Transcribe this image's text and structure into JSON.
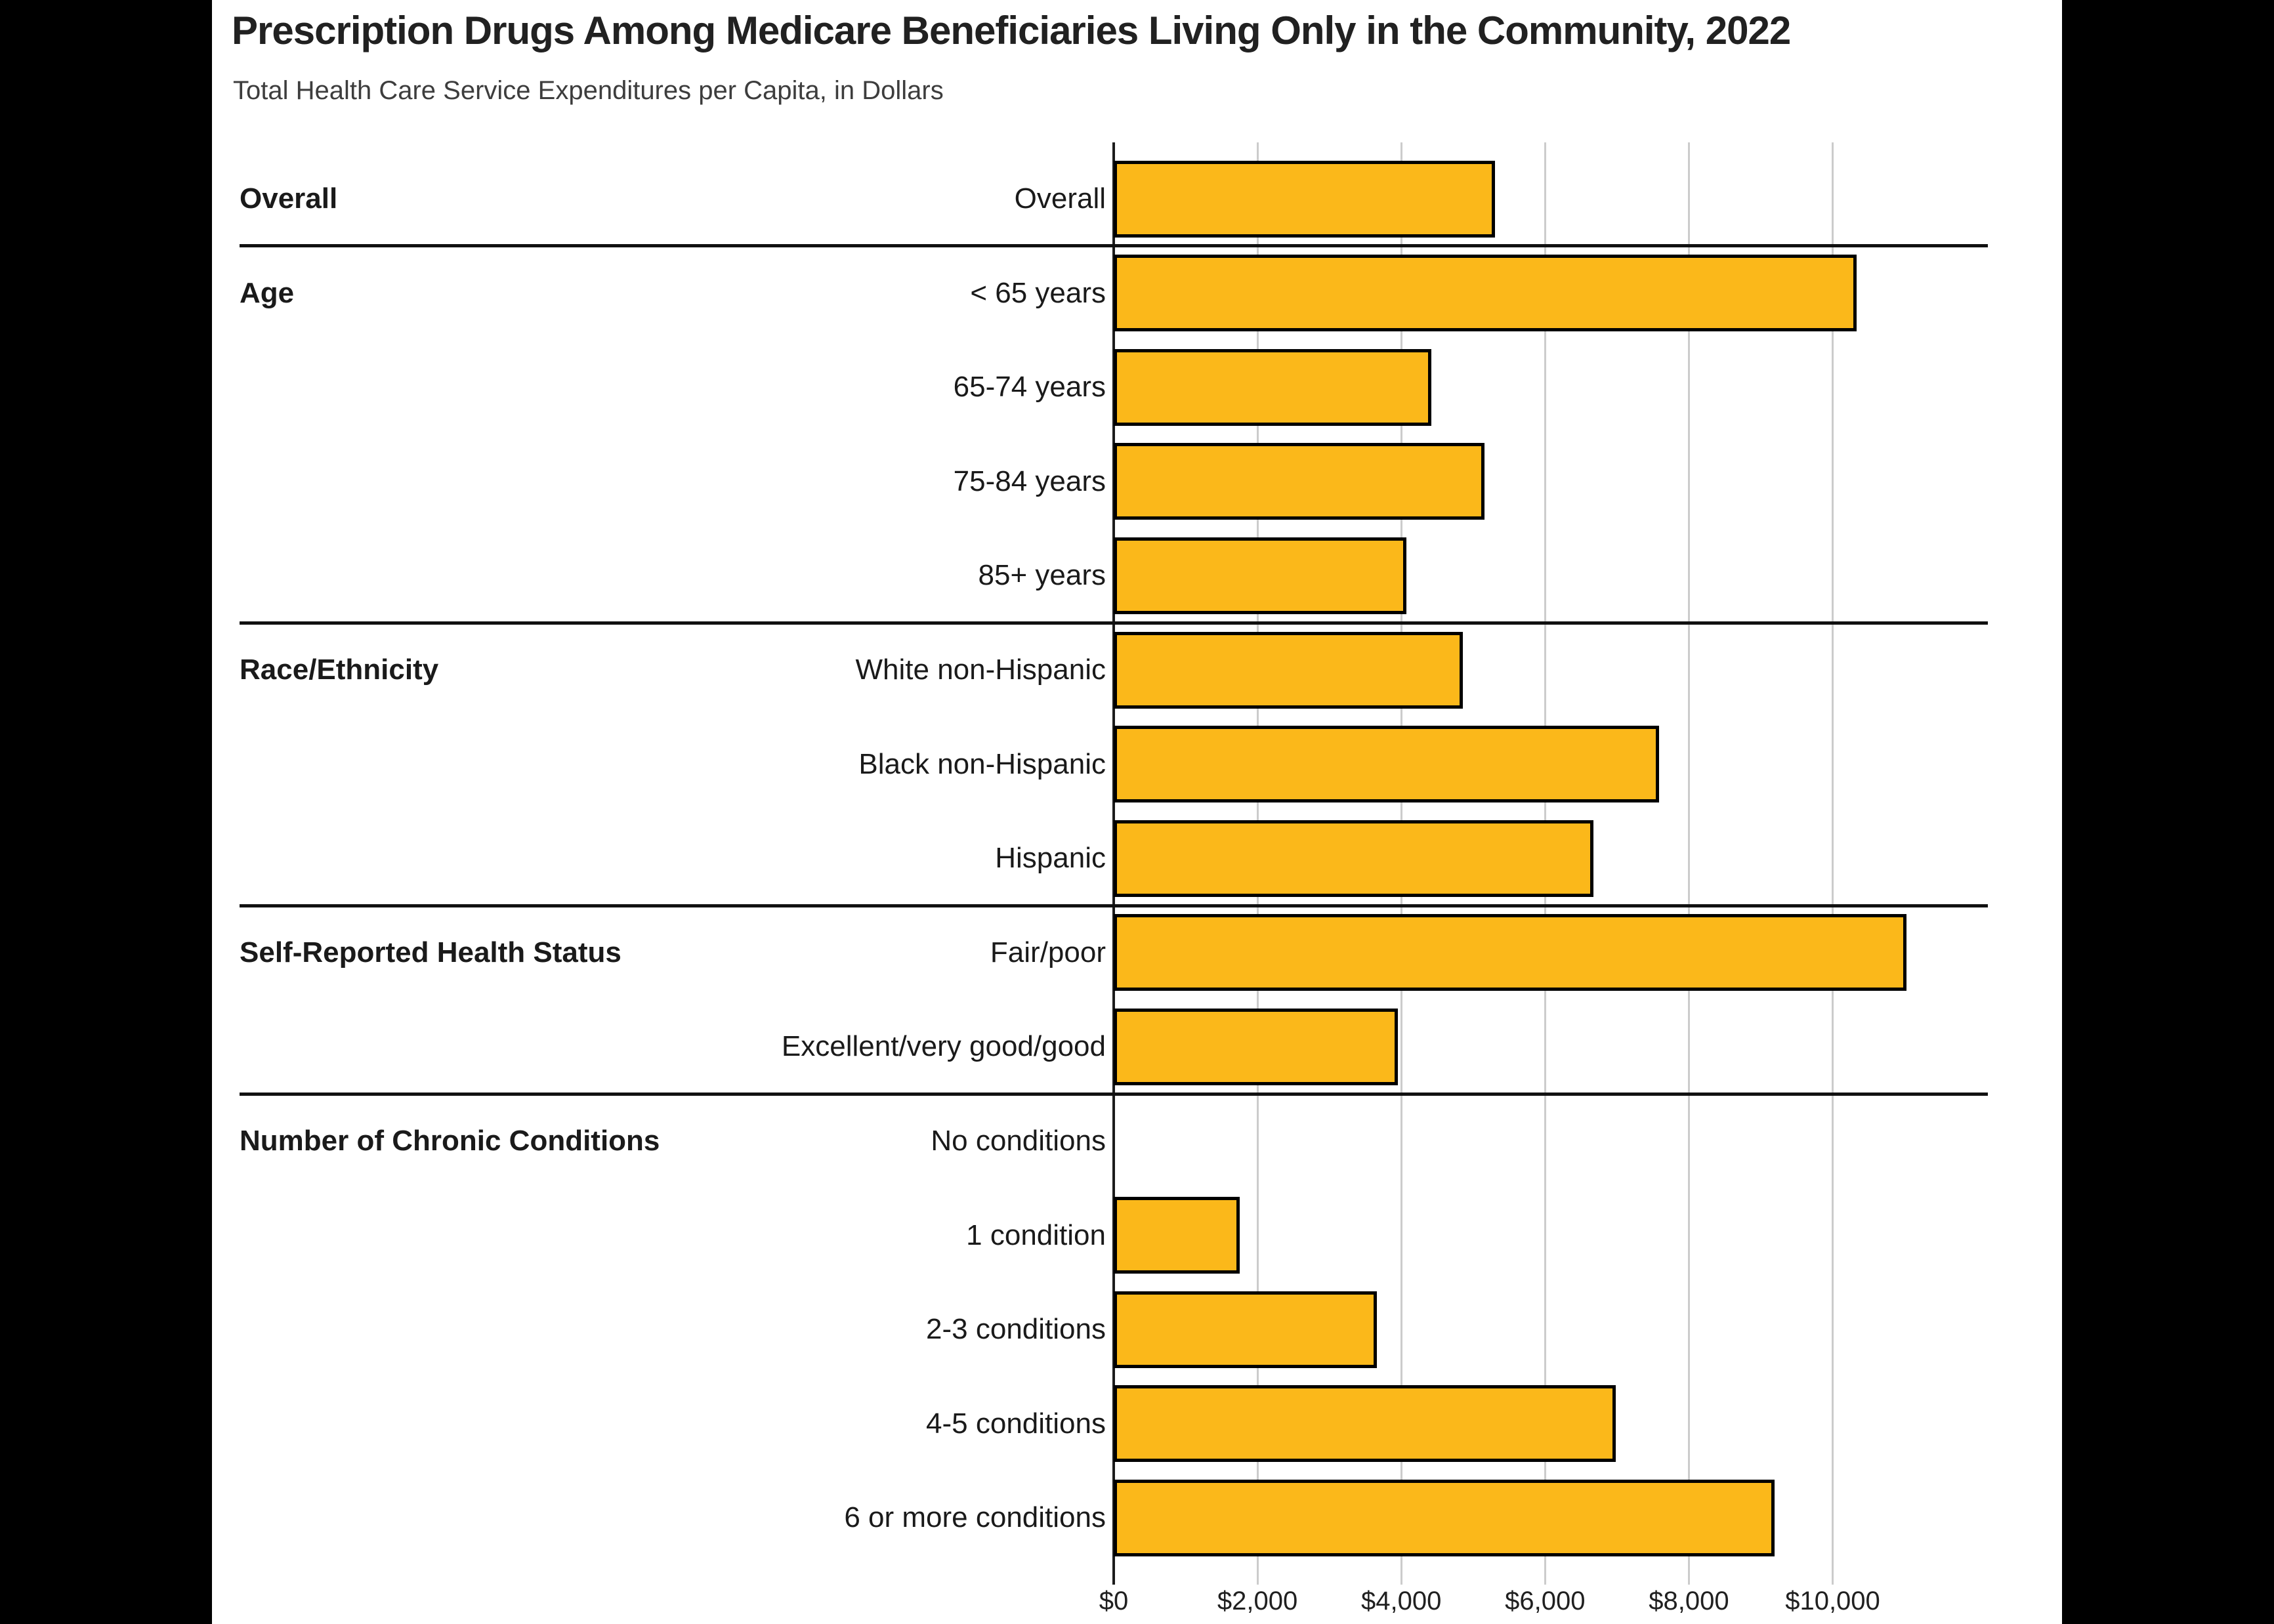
{
  "title": "Prescription Drugs Among Medicare Beneficiaries Living Only in the Community, 2022",
  "subtitle": "Total Health Care Service Expenditures per Capita, in Dollars",
  "chart_data": {
    "type": "bar",
    "orientation": "horizontal",
    "title": "Prescription Drugs Among Medicare Beneficiaries Living Only in the Community, 2022",
    "subtitle": "Total Health Care Service Expenditures per Capita, in Dollars",
    "xlabel": "Total Health Care Service Expenditures per Capita (Dollars)",
    "ylabel": "",
    "xlim": [
      0,
      12000
    ],
    "grid": "vertical, every $2,000, light gray; $0 axis dark",
    "legend_position": "none",
    "x_tick_labels": [
      "$0",
      "$2,000",
      "$4,000",
      "$6,000",
      "$8,000",
      "$10,000"
    ],
    "x_tick_values": [
      0,
      2000,
      4000,
      6000,
      8000,
      10000
    ],
    "bar_color": "#FBB81A",
    "bar_border_color": "#000000",
    "groups": [
      {
        "label": "Overall",
        "rows": [
          {
            "label": "Overall",
            "value": 5300
          }
        ]
      },
      {
        "label": "Age",
        "rows": [
          {
            "label": "< 65 years",
            "value": 10330
          },
          {
            "label": "65-74 years",
            "value": 4420
          },
          {
            "label": "75-84 years",
            "value": 5160
          },
          {
            "label": "85+ years",
            "value": 4070
          }
        ]
      },
      {
        "label": "Race/Ethnicity",
        "rows": [
          {
            "label": "White non-Hispanic",
            "value": 4860
          },
          {
            "label": "Black non-Hispanic",
            "value": 7590
          },
          {
            "label": "Hispanic",
            "value": 6670
          }
        ]
      },
      {
        "label": "Self-Reported Health Status",
        "rows": [
          {
            "label": "Fair/poor",
            "value": 11030
          },
          {
            "label": "Excellent/very good/good",
            "value": 3950
          }
        ]
      },
      {
        "label": "Number of Chronic Conditions",
        "rows": [
          {
            "label": "No conditions",
            "value": 0
          },
          {
            "label": "1 condition",
            "value": 1750
          },
          {
            "label": "2-3 conditions",
            "value": 3660
          },
          {
            "label": "4-5 conditions",
            "value": 6980
          },
          {
            "label": "6 or more conditions",
            "value": 9190
          }
        ]
      }
    ]
  }
}
